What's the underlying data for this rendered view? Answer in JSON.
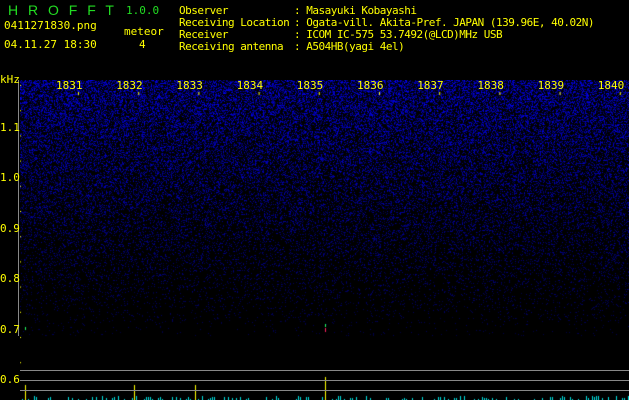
{
  "app": {
    "title": "H R O F F T",
    "version": "1.0.0"
  },
  "file": {
    "name": "0411271830.png",
    "datetime": "04.11.27 18:30"
  },
  "meteor": {
    "label": "meteor",
    "count": "4"
  },
  "info": [
    {
      "label": "Observer",
      "value": ": Masayuki Kobayashi"
    },
    {
      "label": "Receiving Location",
      "value": ": Ogata-vill. Akita-Pref. JAPAN (139.96E, 40.02N)"
    },
    {
      "label": "Receiver",
      "value": ": ICOM IC-575 53.7492(@LCD)MHz USB"
    },
    {
      "label": "Receiving antenna",
      "value": ": A504HB(yagi 4el)"
    }
  ],
  "spectrogram": {
    "unit": "kHz",
    "y_ticks": [
      "1.1",
      "1.0",
      "0.9",
      "0.8",
      "0.7",
      "0.6"
    ],
    "x_ticks": [
      "1831",
      "1832",
      "1833",
      "1834",
      "1835",
      "1836",
      "1837",
      "1838",
      "1839",
      "1840"
    ],
    "colors": {
      "text": "#ffff00",
      "logo": "#22dd22",
      "noise": "#2020ff",
      "detection": "#00e0e0",
      "grid": "#888888"
    }
  }
}
